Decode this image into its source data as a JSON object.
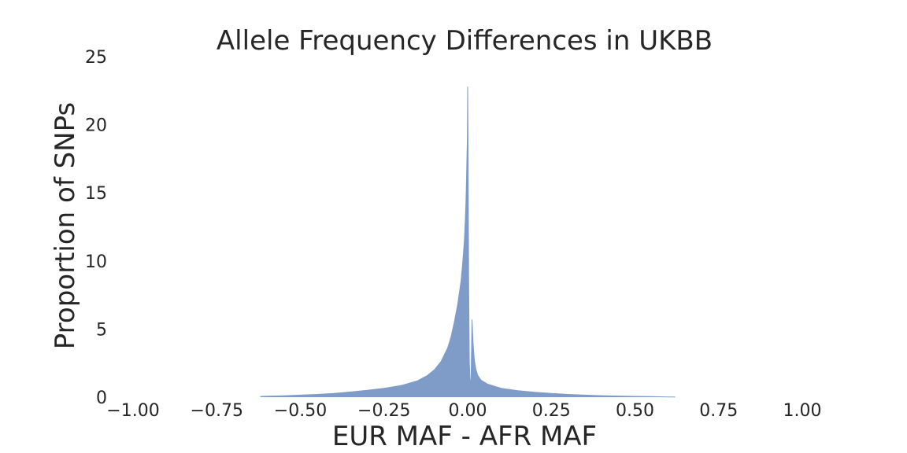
{
  "chart_data": {
    "type": "area",
    "title": "Allele Frequency Differences in UKBB",
    "xlabel": "EUR MAF - AFR MAF",
    "ylabel": "Proportion of SNPs",
    "xlim": [
      -1.0,
      1.0
    ],
    "ylim": [
      0,
      25
    ],
    "x_ticks": [
      -1.0,
      -0.75,
      -0.5,
      -0.25,
      0.0,
      0.25,
      0.5,
      0.75,
      1.0
    ],
    "x_tick_labels": [
      "−1.00",
      "−0.75",
      "−0.50",
      "−0.25",
      "0.00",
      "0.25",
      "0.50",
      "0.75",
      "1.00"
    ],
    "y_ticks": [
      0,
      5,
      10,
      15,
      20,
      25
    ],
    "y_tick_labels": [
      "0",
      "5",
      "10",
      "15",
      "20",
      "25"
    ],
    "grid": false,
    "color": "#7f9cc8",
    "x": [
      -0.62,
      -0.6,
      -0.55,
      -0.5,
      -0.45,
      -0.4,
      -0.35,
      -0.3,
      -0.25,
      -0.2,
      -0.15,
      -0.12,
      -0.1,
      -0.08,
      -0.06,
      -0.05,
      -0.04,
      -0.03,
      -0.02,
      -0.015,
      -0.01,
      -0.007,
      -0.005,
      -0.003,
      -0.001,
      0.0,
      0.001,
      0.003,
      0.005,
      0.007,
      0.01,
      0.013,
      0.016,
      0.02,
      0.025,
      0.03,
      0.04,
      0.06,
      0.08,
      0.1,
      0.15,
      0.2,
      0.25,
      0.3,
      0.35,
      0.4,
      0.45,
      0.5,
      0.55,
      0.6,
      0.62
    ],
    "values": [
      0.05,
      0.07,
      0.1,
      0.15,
      0.2,
      0.28,
      0.38,
      0.5,
      0.65,
      0.85,
      1.2,
      1.6,
      2.0,
      2.6,
      3.6,
      4.4,
      5.5,
      6.8,
      8.5,
      9.8,
      11.5,
      13.0,
      14.5,
      16.5,
      19.0,
      22.8,
      19.0,
      8.0,
      2.6,
      1.3,
      1.2,
      5.7,
      4.0,
      2.7,
      2.0,
      1.6,
      1.25,
      0.95,
      0.8,
      0.65,
      0.48,
      0.36,
      0.28,
      0.2,
      0.15,
      0.11,
      0.08,
      0.06,
      0.04,
      0.02,
      0.01
    ]
  }
}
